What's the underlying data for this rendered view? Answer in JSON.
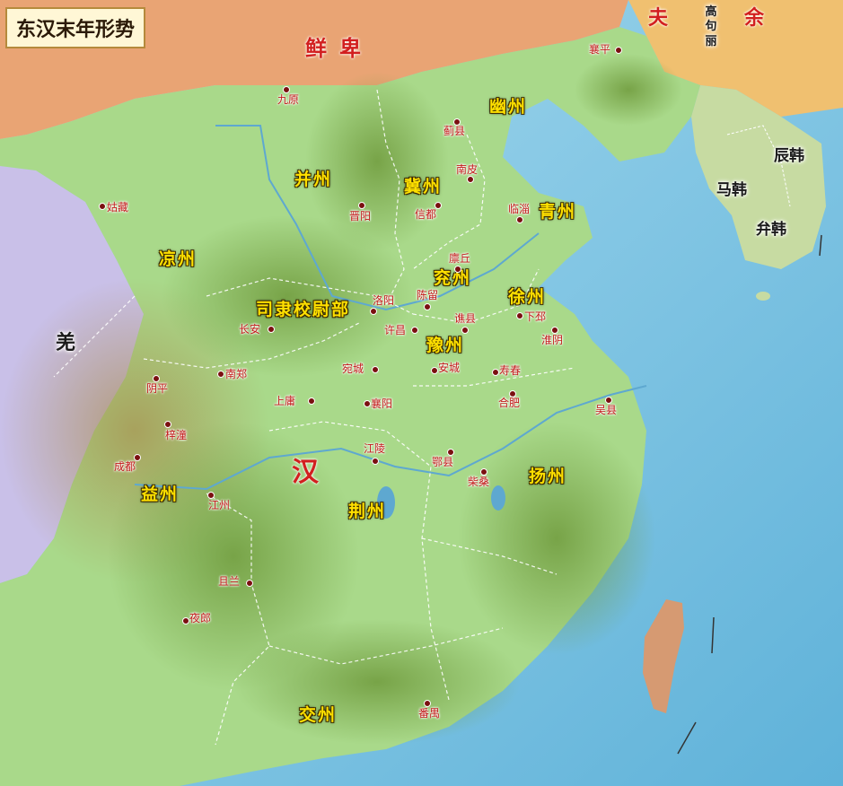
{
  "title": "东汉末年形势",
  "empire": "汉",
  "foreign": {
    "xianbei": "鲜卑",
    "qiang": "羌",
    "fuyu_1": "夫",
    "fuyu_2": "余",
    "gaogouli": "高\n句\n丽",
    "chenhan": "辰韩",
    "mahan": "马韩",
    "bianhan": "弁韩"
  },
  "provinces": {
    "youzhou": "幽州",
    "bingzhou": "并州",
    "jizhou": "冀州",
    "qingzhou": "青州",
    "liangzhou": "凉州",
    "yanzhou": "兖州",
    "xuzhou": "徐州",
    "sili": "司隶校尉部",
    "yuzhou": "豫州",
    "yizhou": "益州",
    "jingzhou": "荆州",
    "yangzhou": "扬州",
    "jiaozhou": "交州"
  },
  "cities": {
    "xiangping": "襄平",
    "jiuyuan": "九原",
    "jixian": "蓟县",
    "nanpi": "南皮",
    "guzang": "姑藏",
    "jinyang": "晋阳",
    "xindu": "信都",
    "linzi": "临淄",
    "linqiu": "廪丘",
    "luoyang": "洛阳",
    "chenliu": "陈留",
    "xiapi": "下邳",
    "changan": "长安",
    "xuchang": "许昌",
    "qiaoxian": "谯县",
    "huaiyin": "淮阴",
    "wancheng": "宛城",
    "ancheng": "安城",
    "shouchun": "寿春",
    "yinping": "阴平",
    "nanzheng": "南郑",
    "hefei": "合肥",
    "wuxian": "吴县",
    "shangyong": "上庸",
    "xiangyang": "襄阳",
    "zitong": "梓潼",
    "jiangling": "江陵",
    "chengdu": "成都",
    "exian": "鄂县",
    "chaisang": "柴桑",
    "jiangzhou": "江州",
    "julan": "且兰",
    "yelang": "夜郎",
    "panyu": "番禺"
  },
  "colors": {
    "sea": "#8ecde6",
    "lowland": "#a9d98a",
    "mountain": "#6f9a3c",
    "xianbei_land": "#e9a474",
    "qiang_land": "#c9c0e8",
    "label_yellow": "#ffe000",
    "city_red": "#c21818"
  }
}
